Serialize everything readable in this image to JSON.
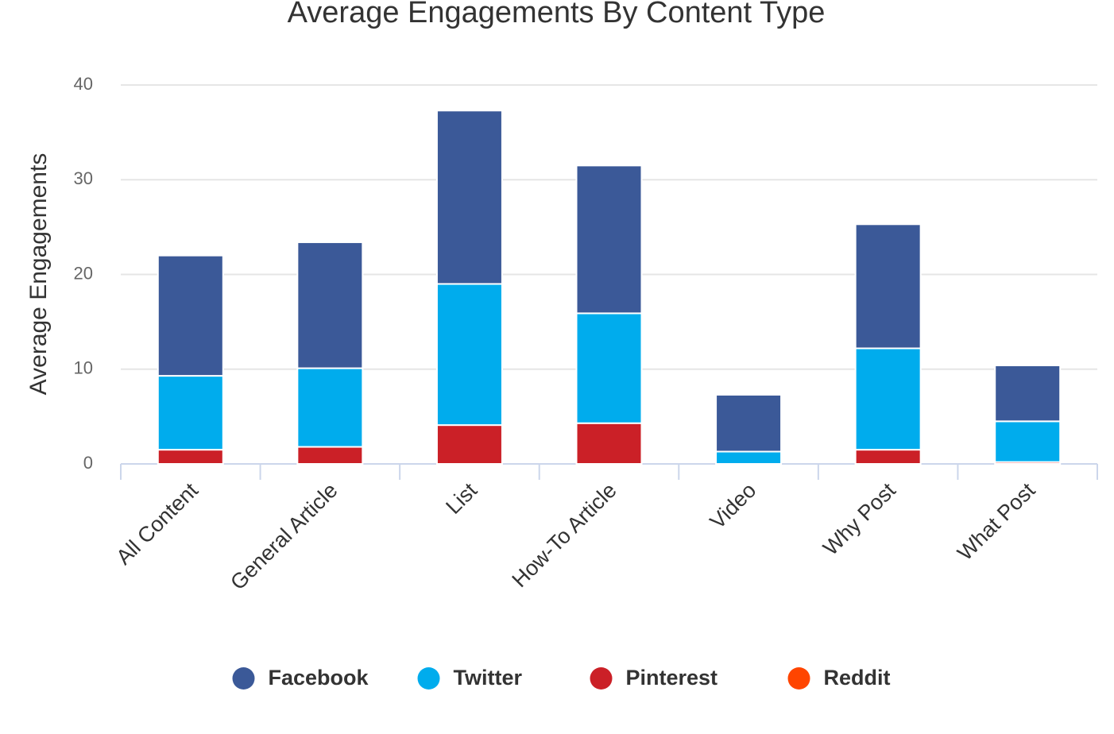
{
  "chart_data": {
    "type": "stacked_bar",
    "title": "Average Engagements By Content Type",
    "y_label": "Average Engagements",
    "categories": [
      "All Content",
      "General Article",
      "List",
      "How-To Article",
      "Video",
      "Why Post",
      "What Post"
    ],
    "series": [
      {
        "name": "Facebook",
        "color": "#3b5998",
        "values": [
          12.7,
          13.3,
          18.3,
          15.6,
          6.0,
          13.1,
          5.9
        ]
      },
      {
        "name": "Twitter",
        "color": "#00aced",
        "values": [
          7.8,
          8.3,
          14.9,
          11.6,
          1.3,
          10.7,
          4.3
        ]
      },
      {
        "name": "Pinterest",
        "color": "#cb2027",
        "values": [
          1.5,
          1.8,
          4.1,
          4.3,
          0,
          1.5,
          0.2
        ]
      },
      {
        "name": "Reddit",
        "color": "#ff4500",
        "values": [
          0,
          0,
          0,
          0,
          0,
          0,
          0
        ]
      }
    ],
    "stack_order": [
      2,
      1,
      0,
      3
    ],
    "ylim": [
      0,
      40
    ],
    "yticks": [
      0,
      10,
      20,
      30,
      40
    ],
    "grid": true,
    "legend": "bottom"
  }
}
